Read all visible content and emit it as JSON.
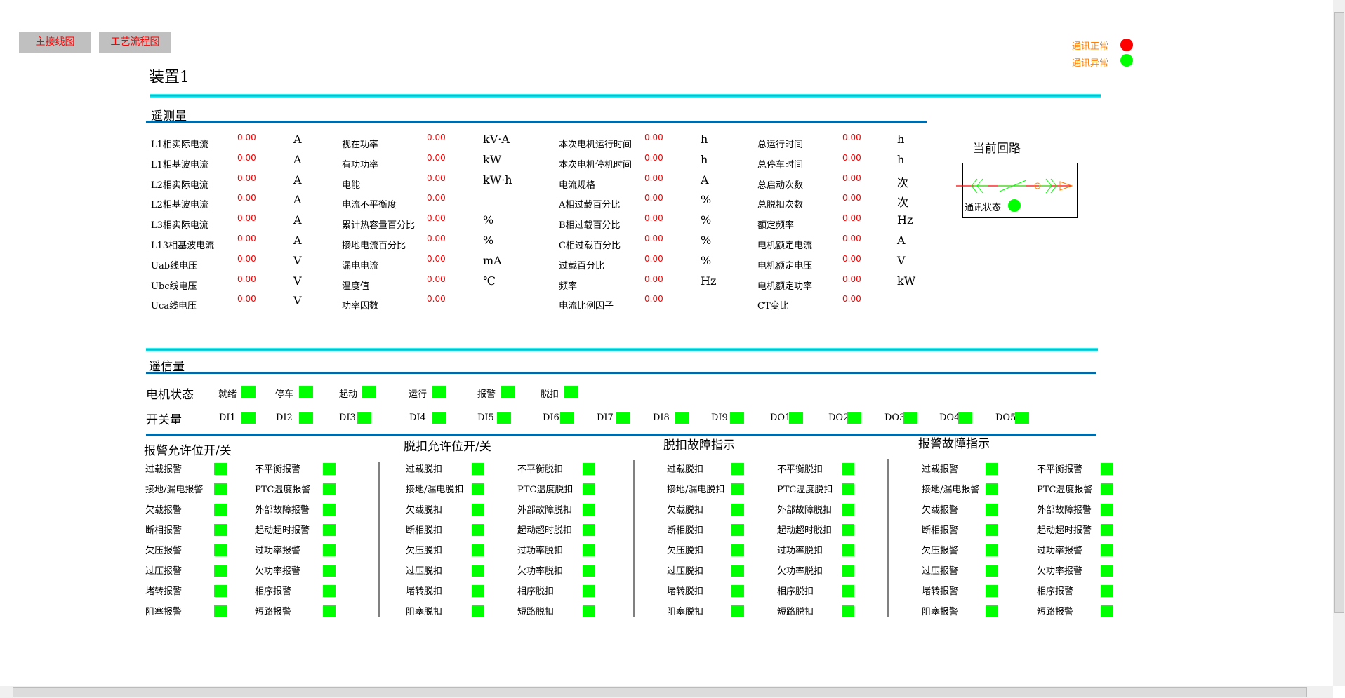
{
  "nav": {
    "main_wiring": "主接线图",
    "process_flow": "工艺流程图"
  },
  "legend": [
    {
      "label": "通讯正常",
      "color": "#ff0000"
    },
    {
      "label": "通讯异常",
      "color": "#00ff00"
    }
  ],
  "device_title": "装置1",
  "telemetry": {
    "title": "遥测量",
    "columns": [
      [
        [
          "L1相实际电流",
          "0.00",
          "A"
        ],
        [
          "L1相基波电流",
          "0.00",
          "A"
        ],
        [
          "L2相实际电流",
          "0.00",
          "A"
        ],
        [
          "L2相基波电流",
          "0.00",
          "A"
        ],
        [
          "L3相实际电流",
          "0.00",
          "A"
        ],
        [
          "L13相基波电流",
          "0.00",
          "A"
        ],
        [
          "Uab线电压",
          "0.00",
          "V"
        ],
        [
          "Ubc线电压",
          "0.00",
          "V"
        ],
        [
          "Uca线电压",
          "0.00",
          "V"
        ]
      ],
      [
        [
          "视在功率",
          "0.00",
          "kV·A"
        ],
        [
          "有功功率",
          "0.00",
          "kW"
        ],
        [
          "电能",
          "0.00",
          "kW·h"
        ],
        [
          "电流不平衡度",
          "0.00",
          ""
        ],
        [
          "累计热容量百分比",
          "0.00",
          "%"
        ],
        [
          "接地电流百分比",
          "0.00",
          "%"
        ],
        [
          "漏电电流",
          "0.00",
          "mA"
        ],
        [
          "温度值",
          "0.00",
          "℃"
        ],
        [
          "功率因数",
          "0.00",
          ""
        ]
      ],
      [
        [
          "本次电机运行时间",
          "0.00",
          "h"
        ],
        [
          "本次电机停机时间",
          "0.00",
          "h"
        ],
        [
          "电流规格",
          "0.00",
          "A"
        ],
        [
          "A相过载百分比",
          "0.00",
          "%"
        ],
        [
          "B相过载百分比",
          "0.00",
          "%"
        ],
        [
          "C相过载百分比",
          "0.00",
          "%"
        ],
        [
          "过载百分比",
          "0.00",
          "%"
        ],
        [
          "频率",
          "0.00",
          "Hz"
        ],
        [
          "电流比例因子",
          "0.00",
          ""
        ]
      ],
      [
        [
          "总运行时间",
          "0.00",
          "h"
        ],
        [
          "总停车时间",
          "0.00",
          "h"
        ],
        [
          "总启动次数",
          "0.00",
          "次"
        ],
        [
          "总脱扣次数",
          "0.00",
          "次"
        ],
        [
          "额定频率",
          "0.00",
          "Hz"
        ],
        [
          "电机额定电流",
          "0.00",
          "A"
        ],
        [
          "电机额定电压",
          "0.00",
          "V"
        ],
        [
          "电机额定功率",
          "0.00",
          "kW"
        ],
        [
          "CT变比",
          "0.00",
          ""
        ]
      ]
    ]
  },
  "circuit": {
    "title": "当前回路",
    "comm_label": "通讯状态",
    "comm_color": "#00ff00"
  },
  "signals": {
    "title": "遥信量",
    "motor_state_label": "电机状态",
    "motor_states": [
      "就绪",
      "停车",
      "起动",
      "运行",
      "报警",
      "脱扣"
    ],
    "switch_label": "开关量",
    "switches": [
      "DI1",
      "DI2",
      "DI3",
      "DI4",
      "DI5",
      "DI6",
      "DI7",
      "DI8",
      "DI9",
      "DO1",
      "DO2",
      "DO3",
      "DO4",
      "DO5"
    ],
    "indicator_color": "#00ff00"
  },
  "groups": [
    {
      "title": "报警允许位开/关",
      "left": [
        "过载报警",
        "接地/漏电报警",
        "欠载报警",
        "断相报警",
        "欠压报警",
        "过压报警",
        "堵转报警",
        "阻塞报警"
      ],
      "right": [
        "不平衡报警",
        "PTC温度报警",
        "外部故障报警",
        "起动超时报警",
        "过功率报警",
        "欠功率报警",
        "相序报警",
        "短路报警"
      ]
    },
    {
      "title": "脱扣允许位开/关",
      "left": [
        "过载脱扣",
        "接地/漏电脱扣",
        "欠载脱扣",
        "断相脱扣",
        "欠压脱扣",
        "过压脱扣",
        "堵转脱扣",
        "阻塞脱扣"
      ],
      "right": [
        "不平衡脱扣",
        "PTC温度脱扣",
        "外部故障脱扣",
        "起动超时脱扣",
        "过功率脱扣",
        "欠功率脱扣",
        "相序脱扣",
        "短路脱扣"
      ]
    },
    {
      "title": "脱扣故障指示",
      "left": [
        "过载脱扣",
        "接地/漏电脱扣",
        "欠载脱扣",
        "断相脱扣",
        "欠压脱扣",
        "过压脱扣",
        "堵转脱扣",
        "阻塞脱扣"
      ],
      "right": [
        "不平衡脱扣",
        "PTC温度脱扣",
        "外部故障脱扣",
        "起动超时脱扣",
        "过功率脱扣",
        "欠功率脱扣",
        "相序脱扣",
        "短路脱扣"
      ]
    },
    {
      "title": "报警故障指示",
      "left": [
        "过载报警",
        "接地/漏电报警",
        "欠载报警",
        "断相报警",
        "欠压报警",
        "过压报警",
        "堵转报警",
        "阻塞报警"
      ],
      "right": [
        "不平衡报警",
        "PTC温度报警",
        "外部故障报警",
        "起动超时报警",
        "过功率报警",
        "欠功率报警",
        "相序报警",
        "短路报警"
      ]
    }
  ]
}
